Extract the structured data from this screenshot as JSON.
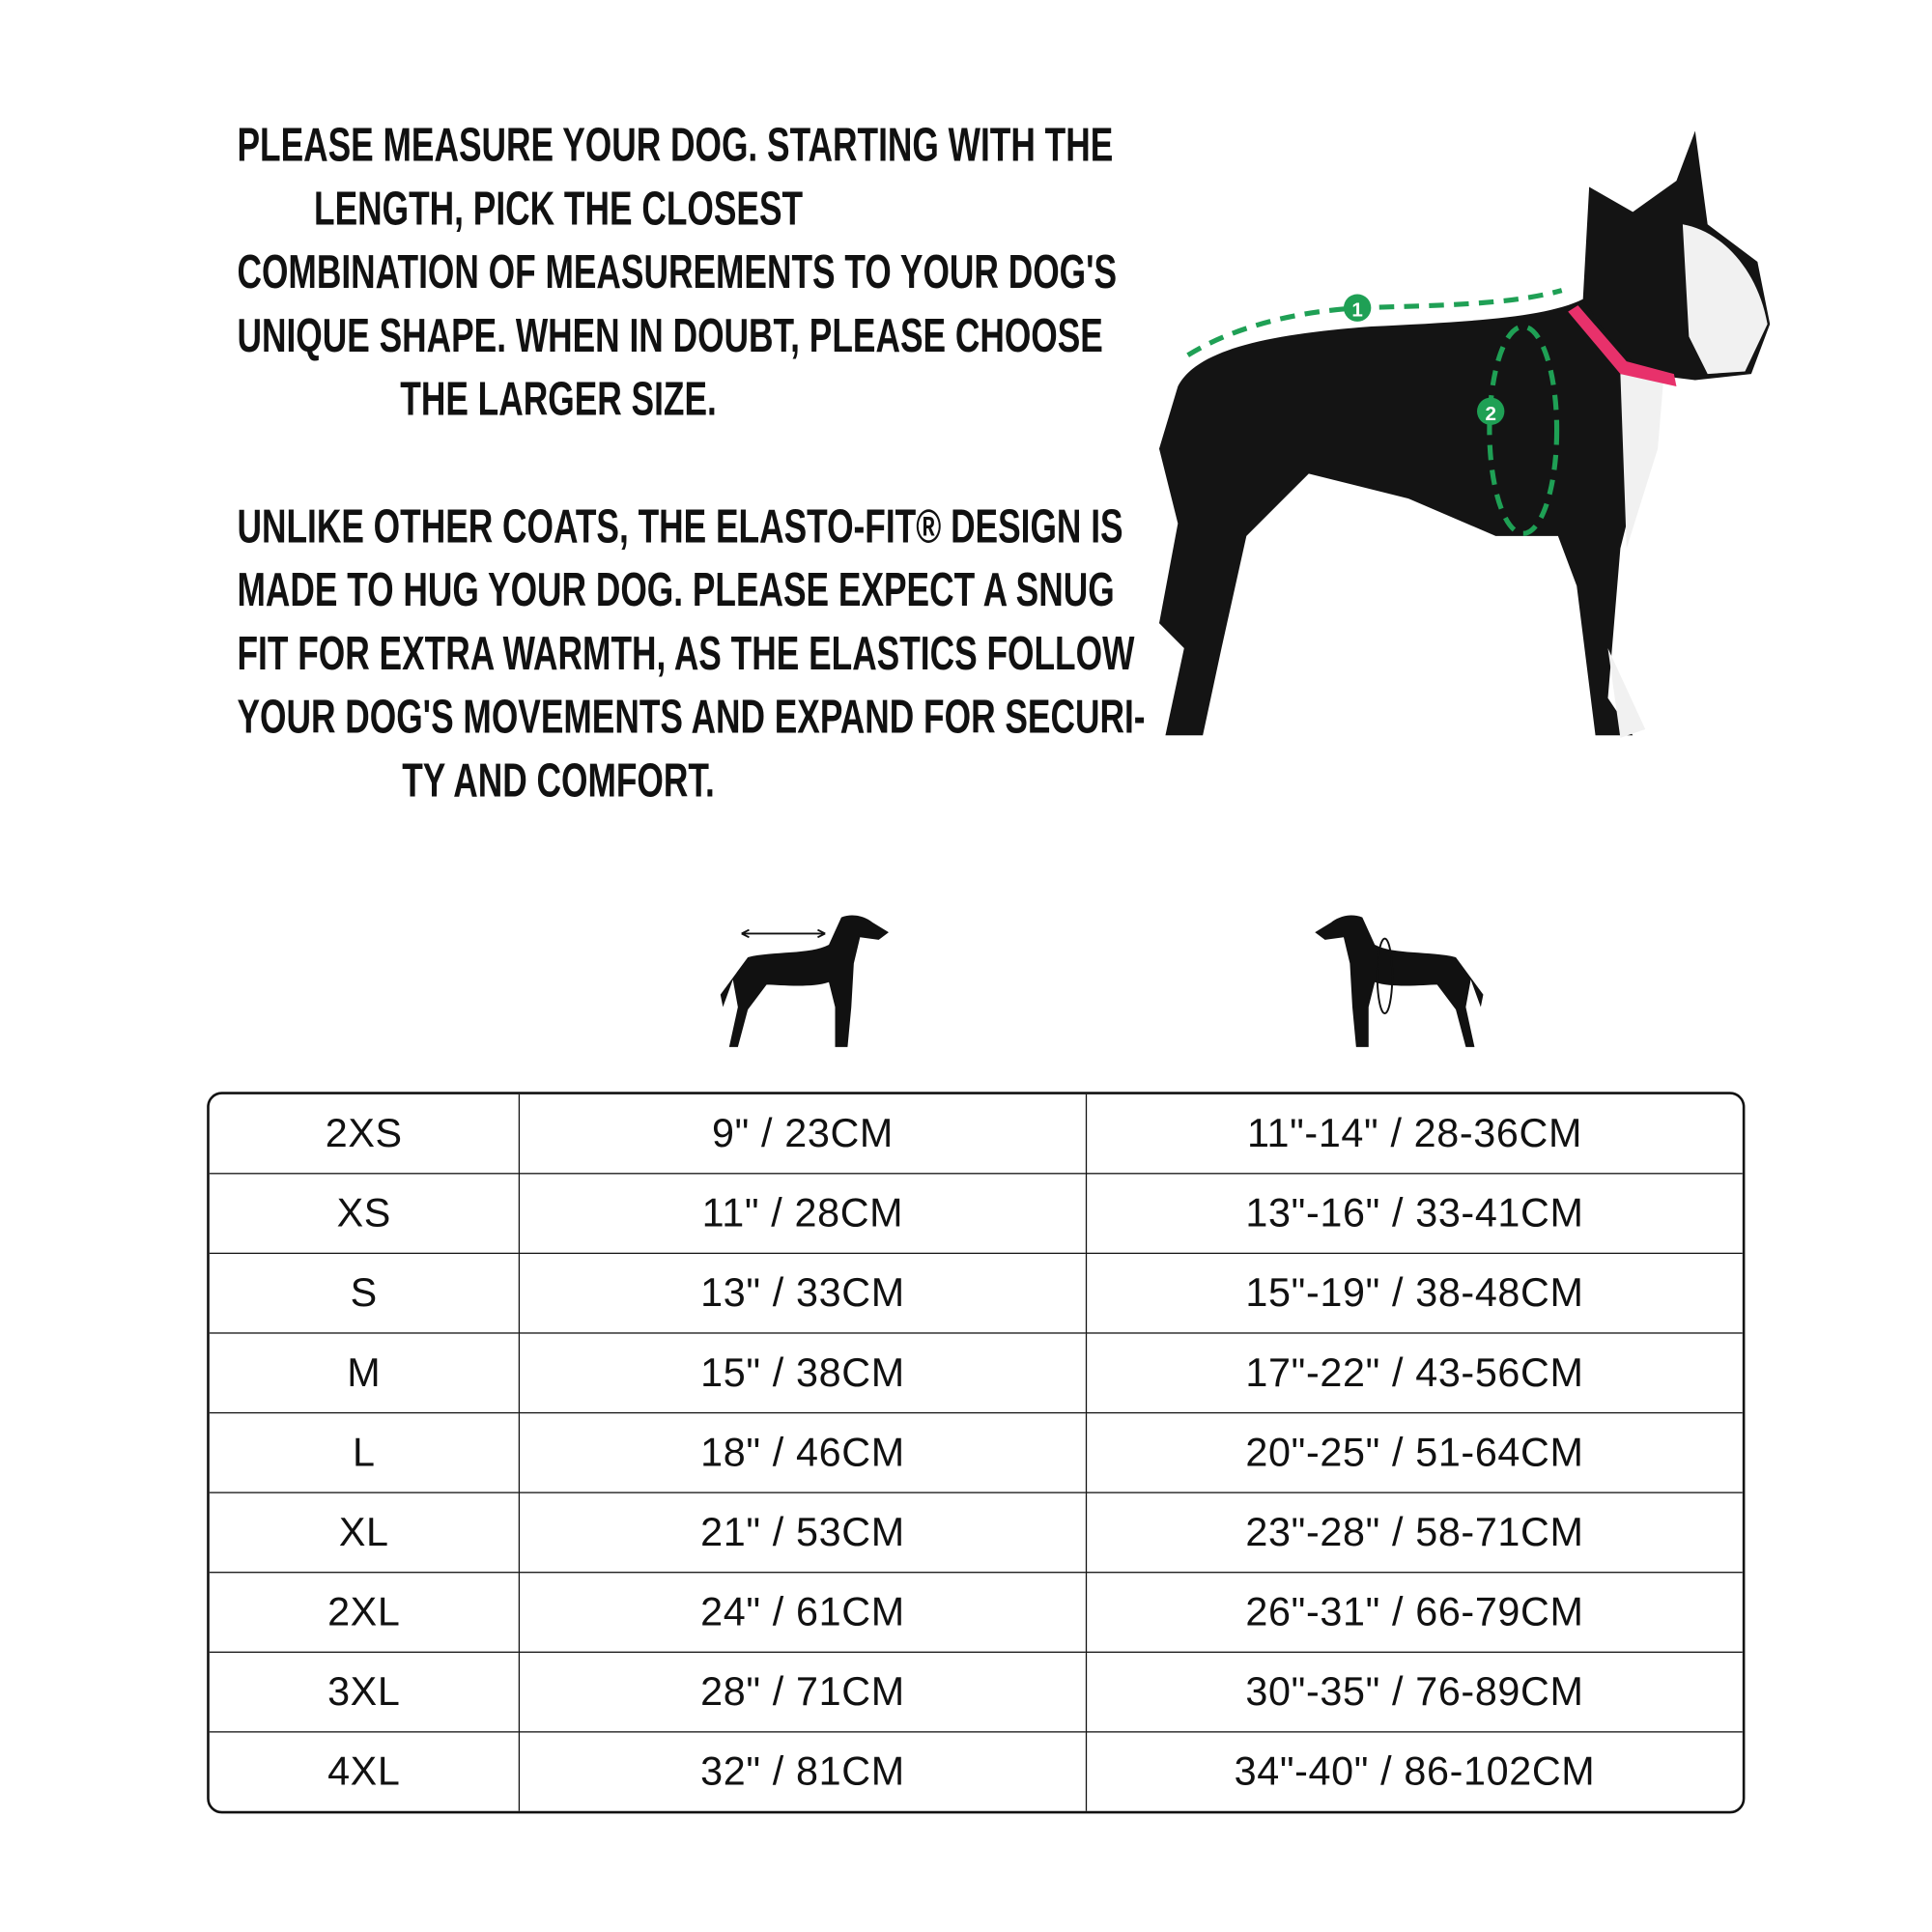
{
  "intro": {
    "paragraph1_lines": [
      "PLEASE MEASURE YOUR DOG. STARTING WITH THE",
      "LENGTH, PICK THE CLOSEST",
      "COMBINATION OF MEASUREMENTS TO YOUR DOG'S",
      "UNIQUE SHAPE. WHEN IN DOUBT, PLEASE CHOOSE",
      "THE LARGER SIZE."
    ],
    "paragraph2_lines": [
      "UNLIKE OTHER COATS, THE ELASTO-FIT® DESIGN IS",
      "MADE TO HUG YOUR DOG. PLEASE EXPECT A SNUG",
      "FIT FOR EXTRA WARMTH, AS THE ELASTICS FOLLOW",
      "YOUR DOG'S MOVEMENTS AND EXPAND FOR SECURI-",
      "TY AND COMFORT."
    ]
  },
  "photo": {
    "marker1": "1",
    "marker2": "2",
    "accent": "#1fa055",
    "collar": "#e8316b"
  },
  "icons": {
    "length": "dog-length-icon",
    "chest": "dog-chest-girth-icon"
  },
  "table": {
    "rows": [
      {
        "size": "2XS",
        "length": "9\" / 23CM",
        "chest": "11\"-14\" / 28-36CM"
      },
      {
        "size": "XS",
        "length": "11\" / 28CM",
        "chest": "13\"-16\" / 33-41CM"
      },
      {
        "size": "S",
        "length": "13\" / 33CM",
        "chest": "15\"-19\" / 38-48CM"
      },
      {
        "size": "M",
        "length": "15\" / 38CM",
        "chest": "17\"-22\" / 43-56CM"
      },
      {
        "size": "L",
        "length": "18\" / 46CM",
        "chest": "20\"-25\" / 51-64CM"
      },
      {
        "size": "XL",
        "length": "21\" / 53CM",
        "chest": "23\"-28\" / 58-71CM"
      },
      {
        "size": "2XL",
        "length": "24\" / 61CM",
        "chest": "26\"-31\" / 66-79CM"
      },
      {
        "size": "3XL",
        "length": "28\" / 71CM",
        "chest": "30\"-35\" / 76-89CM"
      },
      {
        "size": "4XL",
        "length": "32\" / 81CM",
        "chest": "34\"-40\" / 86-102CM"
      }
    ]
  }
}
